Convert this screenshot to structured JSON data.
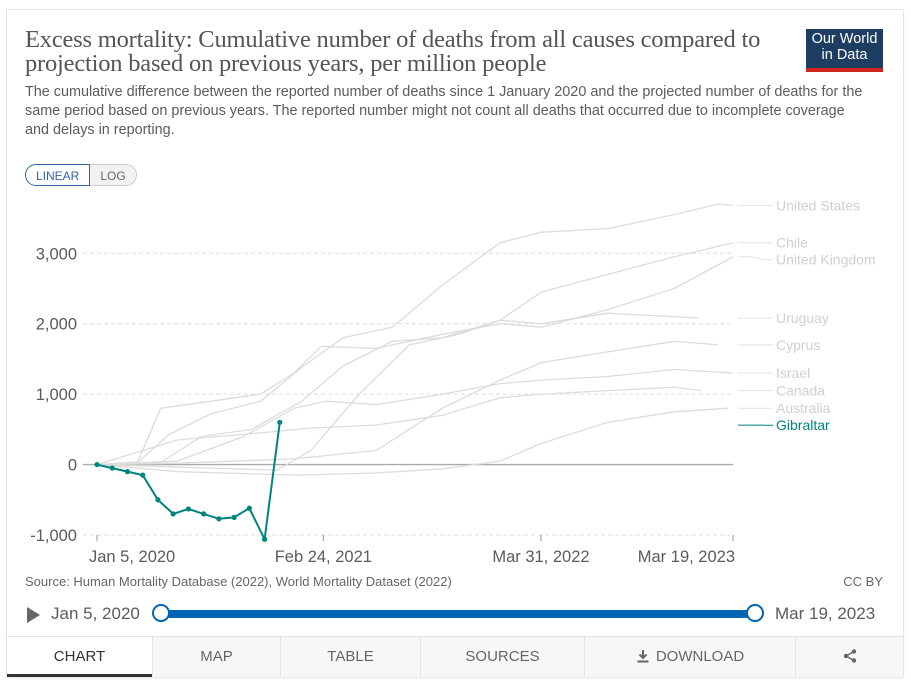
{
  "header": {
    "title": "Excess mortality: Cumulative number of deaths from all causes compared to projection based on previous years, per million people",
    "subtitle": "The cumulative difference between the reported number of deaths since 1 January 2020 and the projected number of deaths for the same period based on previous years. The reported number might not count all deaths that occurred due to incomplete coverage and delays in reporting.",
    "logo_line1": "Our World",
    "logo_line2": "in Data"
  },
  "scale_toggle": {
    "linear": "LINEAR",
    "log": "LOG",
    "active": "linear"
  },
  "colors": {
    "focus": "#00847e",
    "background_series": "#dcdcdc",
    "grid": "#dddddd",
    "zero_line": "#aaaaaa",
    "accent": "#0066b3"
  },
  "chart_data": {
    "type": "line",
    "ylim": [
      -1000,
      3700
    ],
    "y_ticks": [
      -1000,
      0,
      1000,
      2000,
      3000
    ],
    "y_tick_labels": [
      "-1,000",
      "0",
      "1,000",
      "2,000",
      "3,000"
    ],
    "x_range": [
      "2020-01-05",
      "2023-03-19"
    ],
    "x_ticks": [
      {
        "date": "2020-01-05",
        "label": "Jan 5, 2020"
      },
      {
        "date": "2021-02-24",
        "label": "Feb 24, 2021"
      },
      {
        "date": "2022-03-31",
        "label": "Mar 31, 2022"
      },
      {
        "date": "2023-03-19",
        "label": "Mar 19, 2023"
      }
    ],
    "grid": "horizontal dashed",
    "legend": "right",
    "series": [
      {
        "name": "United States",
        "focus": false,
        "points": [
          [
            "2020-01-05",
            0
          ],
          [
            "2020-03-20",
            30
          ],
          [
            "2020-05-15",
            420
          ],
          [
            "2020-08-01",
            720
          ],
          [
            "2020-11-01",
            900
          ],
          [
            "2021-01-15",
            1380
          ],
          [
            "2021-04-01",
            1800
          ],
          [
            "2021-07-01",
            1950
          ],
          [
            "2021-10-01",
            2550
          ],
          [
            "2022-01-15",
            3150
          ],
          [
            "2022-04-01",
            3300
          ],
          [
            "2022-08-01",
            3350
          ],
          [
            "2022-12-01",
            3550
          ],
          [
            "2023-02-20",
            3700
          ],
          [
            "2023-03-19",
            3680
          ]
        ]
      },
      {
        "name": "Chile",
        "focus": false,
        "points": [
          [
            "2020-01-05",
            0
          ],
          [
            "2020-05-01",
            30
          ],
          [
            "2020-07-15",
            400
          ],
          [
            "2020-10-15",
            500
          ],
          [
            "2021-01-15",
            900
          ],
          [
            "2021-04-01",
            1400
          ],
          [
            "2021-07-01",
            1750
          ],
          [
            "2021-10-01",
            1800
          ],
          [
            "2022-01-15",
            2050
          ],
          [
            "2022-04-01",
            2450
          ],
          [
            "2022-08-01",
            2700
          ],
          [
            "2022-12-01",
            2950
          ],
          [
            "2023-03-19",
            3150
          ]
        ]
      },
      {
        "name": "United Kingdom",
        "focus": false,
        "points": [
          [
            "2020-01-05",
            0
          ],
          [
            "2020-03-20",
            40
          ],
          [
            "2020-05-01",
            800
          ],
          [
            "2020-08-01",
            900
          ],
          [
            "2020-11-01",
            1000
          ],
          [
            "2021-01-01",
            1300
          ],
          [
            "2021-02-20",
            1680
          ],
          [
            "2021-06-01",
            1650
          ],
          [
            "2021-10-01",
            1850
          ],
          [
            "2022-01-15",
            2000
          ],
          [
            "2022-04-01",
            1950
          ],
          [
            "2022-08-01",
            2200
          ],
          [
            "2022-12-01",
            2500
          ],
          [
            "2023-03-19",
            2950
          ]
        ]
      },
      {
        "name": "Uruguay",
        "focus": false,
        "points": [
          [
            "2020-01-05",
            0
          ],
          [
            "2020-12-01",
            -80
          ],
          [
            "2021-02-01",
            200
          ],
          [
            "2021-05-01",
            1000
          ],
          [
            "2021-08-01",
            1700
          ],
          [
            "2021-11-01",
            1850
          ],
          [
            "2022-01-15",
            2050
          ],
          [
            "2022-04-01",
            2000
          ],
          [
            "2022-08-01",
            2150
          ],
          [
            "2022-12-01",
            2100
          ],
          [
            "2023-01-15",
            2080
          ]
        ]
      },
      {
        "name": "Cyprus",
        "focus": false,
        "points": [
          [
            "2020-01-05",
            0
          ],
          [
            "2020-06-01",
            20
          ],
          [
            "2021-01-01",
            80
          ],
          [
            "2021-06-01",
            200
          ],
          [
            "2021-10-01",
            800
          ],
          [
            "2022-01-15",
            1200
          ],
          [
            "2022-04-01",
            1450
          ],
          [
            "2022-08-01",
            1600
          ],
          [
            "2022-12-01",
            1750
          ],
          [
            "2023-02-20",
            1700
          ]
        ]
      },
      {
        "name": "Israel",
        "focus": false,
        "points": [
          [
            "2020-01-05",
            0
          ],
          [
            "2020-06-01",
            50
          ],
          [
            "2020-10-01",
            400
          ],
          [
            "2021-01-01",
            800
          ],
          [
            "2021-03-01",
            900
          ],
          [
            "2021-06-01",
            850
          ],
          [
            "2021-10-01",
            1000
          ],
          [
            "2022-01-15",
            1150
          ],
          [
            "2022-04-01",
            1200
          ],
          [
            "2022-08-01",
            1250
          ],
          [
            "2022-12-01",
            1350
          ],
          [
            "2023-03-19",
            1300
          ]
        ]
      },
      {
        "name": "Canada",
        "focus": false,
        "points": [
          [
            "2020-01-05",
            0
          ],
          [
            "2020-06-01",
            350
          ],
          [
            "2020-11-01",
            450
          ],
          [
            "2021-02-01",
            520
          ],
          [
            "2021-06-01",
            560
          ],
          [
            "2021-10-01",
            700
          ],
          [
            "2022-01-15",
            950
          ],
          [
            "2022-04-01",
            1000
          ],
          [
            "2022-08-01",
            1050
          ],
          [
            "2022-12-01",
            1100
          ],
          [
            "2023-01-20",
            1050
          ]
        ]
      },
      {
        "name": "Australia",
        "focus": false,
        "points": [
          [
            "2020-01-05",
            0
          ],
          [
            "2020-06-01",
            -100
          ],
          [
            "2021-01-01",
            -150
          ],
          [
            "2021-06-01",
            -120
          ],
          [
            "2021-10-01",
            -60
          ],
          [
            "2022-01-15",
            50
          ],
          [
            "2022-04-01",
            300
          ],
          [
            "2022-08-01",
            600
          ],
          [
            "2022-12-01",
            750
          ],
          [
            "2023-03-10",
            800
          ]
        ]
      },
      {
        "name": "Gibraltar",
        "focus": true,
        "points": [
          [
            "2020-01-05",
            0
          ],
          [
            "2020-02-02",
            -50
          ],
          [
            "2020-03-01",
            -100
          ],
          [
            "2020-03-29",
            -150
          ],
          [
            "2020-04-26",
            -500
          ],
          [
            "2020-05-24",
            -700
          ],
          [
            "2020-06-21",
            -630
          ],
          [
            "2020-07-19",
            -700
          ],
          [
            "2020-08-16",
            -770
          ],
          [
            "2020-09-13",
            -750
          ],
          [
            "2020-10-11",
            -620
          ],
          [
            "2020-11-08",
            -1060
          ],
          [
            "2020-12-06",
            600
          ]
        ]
      }
    ],
    "label_order": [
      "United States",
      "Chile",
      "United Kingdom",
      "Uruguay",
      "Cyprus",
      "Israel",
      "Canada",
      "Australia",
      "Gibraltar"
    ]
  },
  "footer": {
    "source": "Source: Human Mortality Database (2022), World Mortality Dataset (2022)",
    "license": "CC BY"
  },
  "timeline": {
    "start": "Jan 5, 2020",
    "end": "Mar 19, 2023"
  },
  "tabs": [
    "CHART",
    "MAP",
    "TABLE",
    "SOURCES",
    "DOWNLOAD",
    ""
  ]
}
